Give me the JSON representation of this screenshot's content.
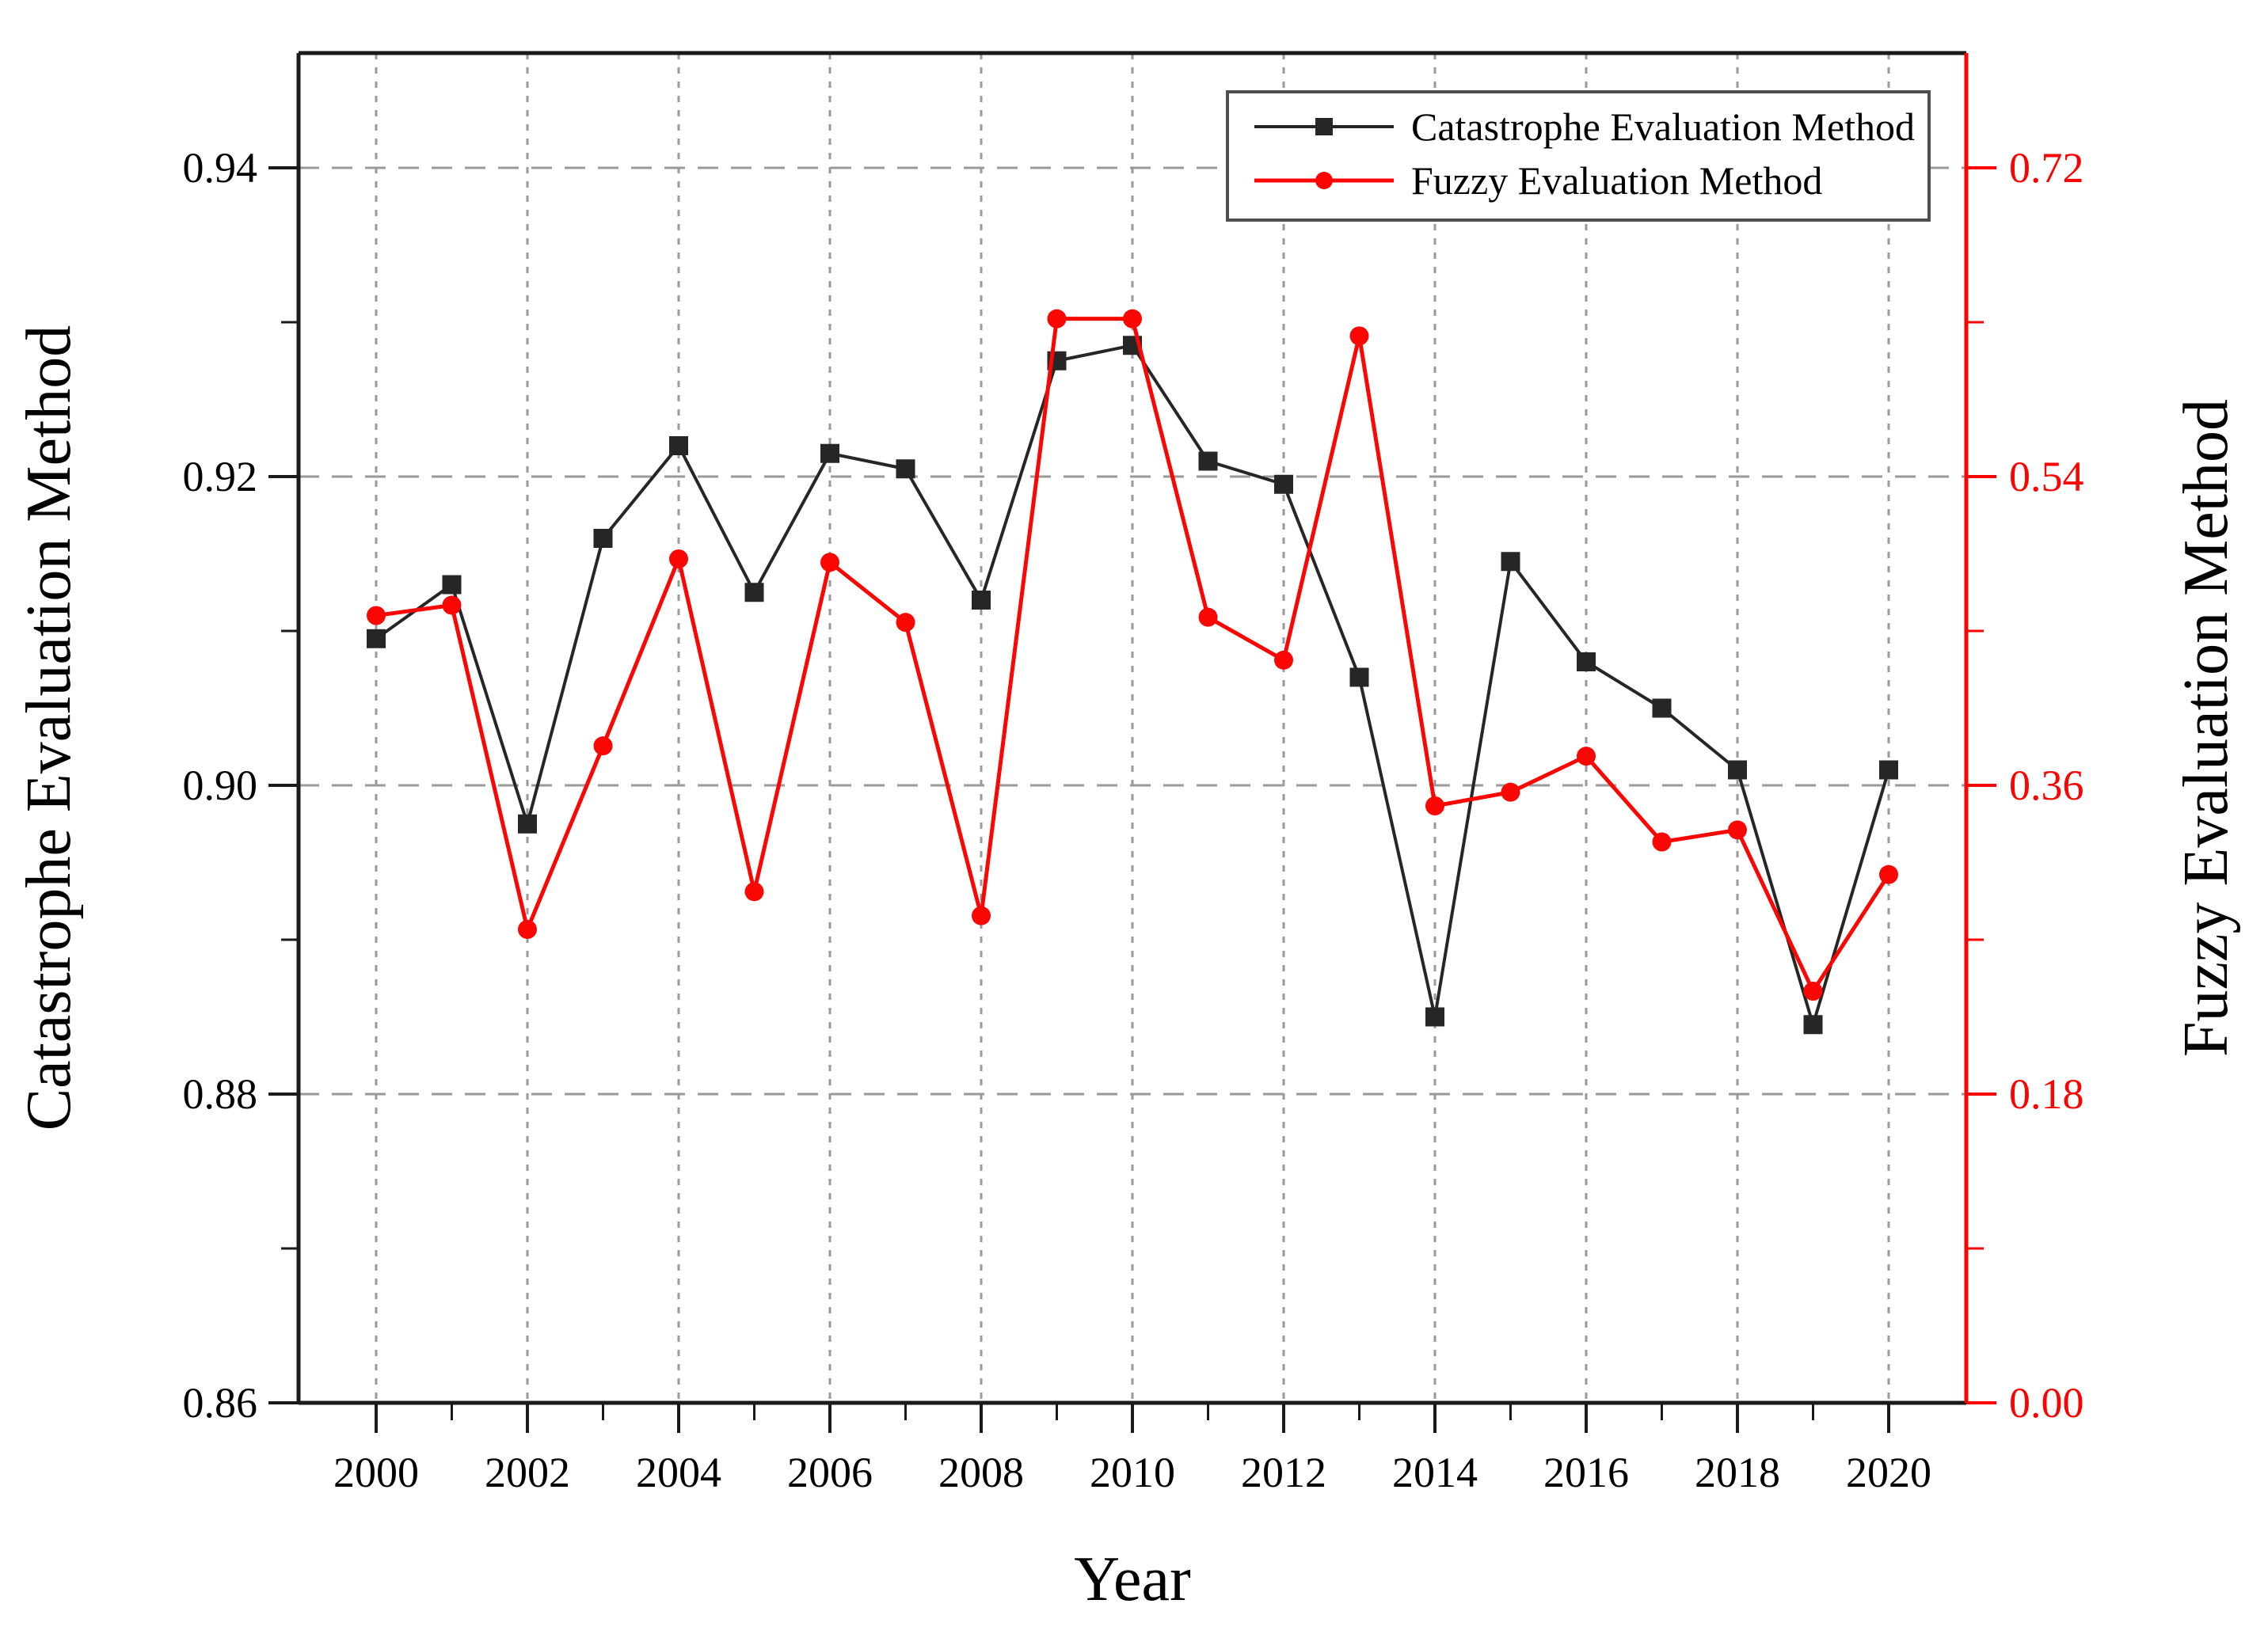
{
  "figure": {
    "background": "#ffffff"
  },
  "chart_data": {
    "type": "line",
    "title": "",
    "x": [
      2000,
      2001,
      2002,
      2003,
      2004,
      2005,
      2006,
      2007,
      2008,
      2009,
      2010,
      2011,
      2012,
      2013,
      2014,
      2015,
      2016,
      2017,
      2018,
      2019,
      2020
    ],
    "series": [
      {
        "name": "Catastrophe Evaluation Method",
        "axis": "left",
        "color": "#262626",
        "marker": "square",
        "values": [
          0.9095,
          0.913,
          0.8975,
          0.916,
          0.922,
          0.9125,
          0.9215,
          0.9205,
          0.912,
          0.9275,
          0.9285,
          0.921,
          0.9195,
          0.907,
          0.885,
          0.9145,
          0.908,
          0.905,
          0.901,
          0.8845,
          0.901
        ]
      },
      {
        "name": "Fuzzy Evaluation Method",
        "axis": "right",
        "color": "#fa0703",
        "marker": "circle",
        "values": [
          0.459,
          0.465,
          0.276,
          0.383,
          0.492,
          0.298,
          0.49,
          0.455,
          0.284,
          0.632,
          0.632,
          0.458,
          0.433,
          0.622,
          0.348,
          0.356,
          0.377,
          0.327,
          0.334,
          0.24,
          0.308
        ]
      }
    ],
    "xlabel": "Year",
    "x_axis": {
      "major_ticks": [
        2000,
        2002,
        2004,
        2006,
        2008,
        2010,
        2012,
        2014,
        2016,
        2018,
        2020
      ],
      "minor_every": 1,
      "color": "#1a1a1a"
    },
    "left_axis": {
      "label": "Catastrophe Evaluation Method",
      "min": 0.86,
      "max": 0.94,
      "major_ticks": [
        "0.86",
        "0.88",
        "0.90",
        "0.92",
        "0.94"
      ],
      "minor_every": 0.01,
      "color": "#1a1a1a"
    },
    "right_axis": {
      "label": "Fuzzy Evaluation Method",
      "min": 0.0,
      "max": 0.72,
      "major_ticks": [
        "0.00",
        "0.18",
        "0.36",
        "0.54",
        "0.72"
      ],
      "minor_every": 0.09,
      "color": "#fb0300"
    },
    "grid": {
      "show": true,
      "color": "#9a9a9a"
    },
    "legend": {
      "position": "top-right"
    }
  }
}
